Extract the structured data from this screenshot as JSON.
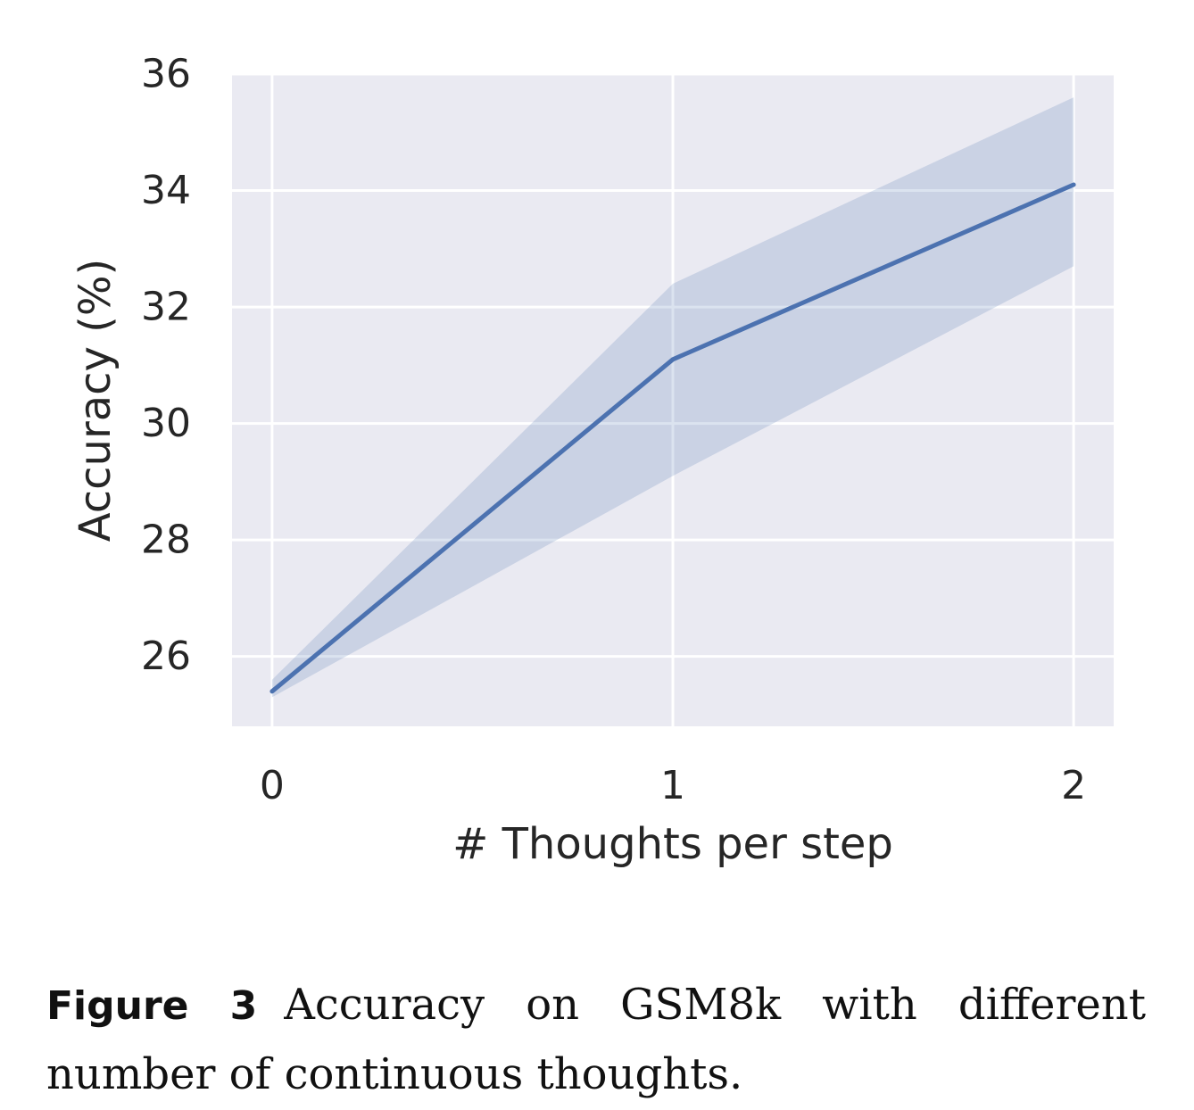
{
  "chart_data": {
    "type": "line",
    "xlabel": "# Thoughts per step",
    "ylabel": "Accuracy (%)",
    "x": [
      0,
      1,
      2
    ],
    "x_ticks": [
      "0",
      "1",
      "2"
    ],
    "y_ticks": [
      "26",
      "28",
      "30",
      "32",
      "34",
      "36"
    ],
    "ylim": [
      24.8,
      36
    ],
    "xlim": [
      -0.1,
      2.1
    ],
    "grid": true,
    "series": [
      {
        "values": [
          25.4,
          31.1,
          34.1
        ],
        "ci_lower": [
          25.3,
          29.1,
          32.7
        ],
        "ci_upper": [
          25.6,
          32.4,
          35.6
        ],
        "color": "#4c72b0",
        "band_color": "#4c72b0"
      }
    ],
    "plot_background": "#eaeaf2"
  },
  "caption": {
    "label": "Figure 3",
    "text": "Accuracy on GSM8k with different number of continuous thoughts."
  }
}
